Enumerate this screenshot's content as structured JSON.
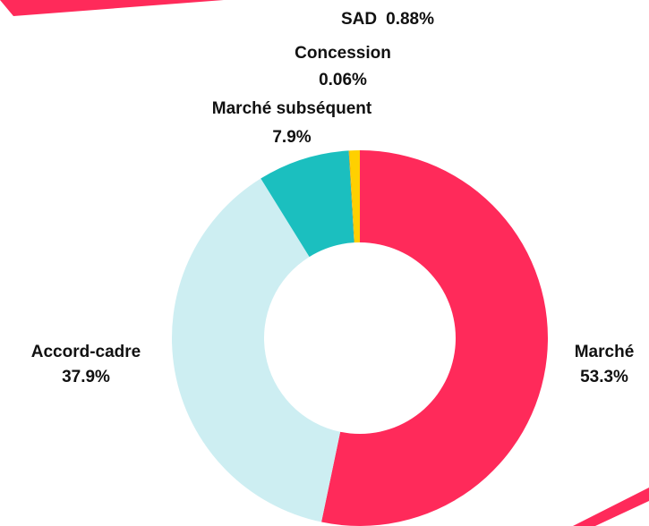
{
  "chart_data": {
    "type": "donut",
    "categories": [
      "Marché",
      "Accord-cadre",
      "Marché subséquent",
      "Concession",
      "SAD"
    ],
    "values": [
      53.3,
      37.9,
      7.9,
      0.06,
      0.88
    ],
    "value_labels": [
      "53.3%",
      "37.9%",
      "7.9%",
      "0.06%",
      "0.88%"
    ],
    "colors": [
      "#ff2a5a",
      "#cdeef2",
      "#1bbfbf",
      "#e8a200",
      "#ffd000"
    ]
  }
}
